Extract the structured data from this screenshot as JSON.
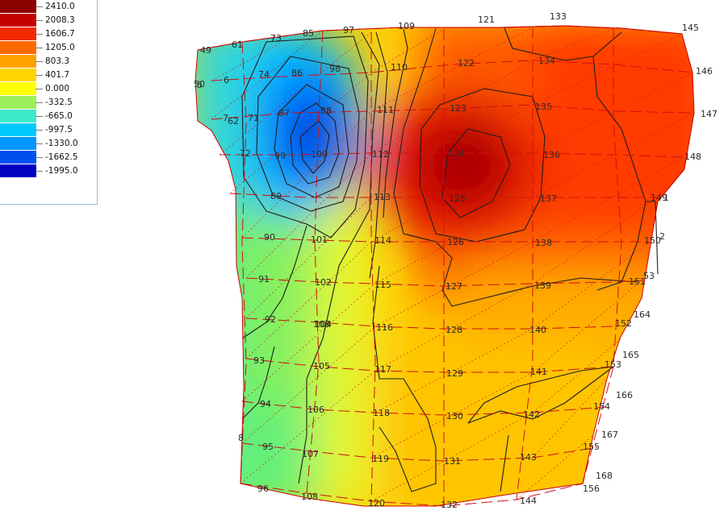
{
  "legend": {
    "levels": [
      {
        "value": "2410.0",
        "color": "#8b0000"
      },
      {
        "value": "2008.3",
        "color": "#c40000"
      },
      {
        "value": "1606.7",
        "color": "#f22a00"
      },
      {
        "value": "1205.0",
        "color": "#ff6a00"
      },
      {
        "value": "803.3",
        "color": "#ffa200"
      },
      {
        "value": "401.7",
        "color": "#ffd400"
      },
      {
        "value": "0.000",
        "color": "#ffff00"
      },
      {
        "value": "-332.5",
        "color": "#9cf05a"
      },
      {
        "value": "-665.0",
        "color": "#3ce8c8"
      },
      {
        "value": "-997.5",
        "color": "#00c8ff"
      },
      {
        "value": "-1330.0",
        "color": "#0096ff"
      },
      {
        "value": "-1662.5",
        "color": "#0050f0"
      },
      {
        "value": "-1995.0",
        "color": "#0000c0"
      }
    ]
  },
  "nodes": [
    "49",
    "61",
    "73",
    "85",
    "97",
    "109",
    "121",
    "133",
    "145",
    "146",
    "147",
    "148",
    "149",
    "1",
    "150",
    "2",
    "151",
    "53",
    "164",
    "152",
    "165",
    "153",
    "166",
    "154",
    "167",
    "155",
    "168",
    "156",
    "74",
    "86",
    "98",
    "110",
    "122",
    "134",
    "135",
    "136",
    "137",
    "138",
    "139",
    "140",
    "141",
    "142",
    "143",
    "144",
    "123",
    "124",
    "125",
    "126",
    "127",
    "128",
    "129",
    "130",
    "131",
    "132",
    "111",
    "112",
    "113",
    "114",
    "115",
    "116",
    "117",
    "118",
    "119",
    "120",
    "87",
    "88",
    "89",
    "90",
    "91",
    "92",
    "93",
    "94",
    "95",
    "96",
    "99",
    "100",
    "101",
    "102",
    "103",
    "104",
    "105",
    "106",
    "107",
    "108",
    "5",
    "6",
    "7",
    "8",
    "50",
    "62",
    "71",
    "72"
  ]
}
